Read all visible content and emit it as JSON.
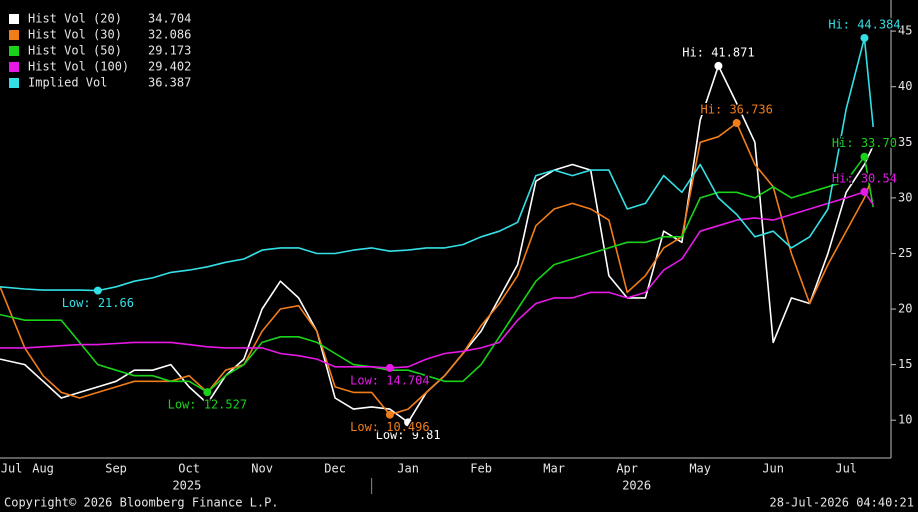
{
  "chart_data": {
    "type": "line",
    "x": [
      0.91,
      1.25,
      1.5,
      1.75,
      2.0,
      2.25,
      2.5,
      2.75,
      3.0,
      3.25,
      3.5,
      3.75,
      4.0,
      4.25,
      4.5,
      4.75,
      5.0,
      5.25,
      5.5,
      5.75,
      6.0,
      6.25,
      6.5,
      6.75,
      7.0,
      7.25,
      7.5,
      7.75,
      8.0,
      8.25,
      8.5,
      8.75,
      9.0,
      9.25,
      9.5,
      9.75,
      10.0,
      10.25,
      10.5,
      10.75,
      11.0,
      11.25,
      11.5,
      11.75,
      12.0,
      12.25,
      12.5,
      12.75,
      12.87
    ],
    "series": [
      {
        "name": "Hist Vol (20)",
        "color": "#ffffff",
        "values": [
          15.5,
          15.0,
          13.5,
          12.0,
          12.5,
          13.0,
          13.5,
          14.5,
          14.5,
          15.0,
          13.0,
          11.5,
          14.0,
          15.5,
          20.0,
          22.5,
          21.0,
          18.0,
          12.0,
          11.0,
          11.2,
          11.0,
          9.81,
          12.5,
          14.0,
          16.0,
          18.0,
          21.0,
          24.0,
          31.5,
          32.5,
          33.0,
          32.5,
          23.0,
          21.0,
          21.0,
          27.0,
          26.0,
          37.0,
          41.871,
          38.5,
          35.0,
          17.0,
          21.0,
          20.5,
          25.0,
          30.5,
          33.0,
          34.704
        ],
        "annotations": [
          {
            "x": 6.5,
            "y": 9.81,
            "label": "Low: 9.81"
          },
          {
            "x": 10.75,
            "y": 41.871,
            "label": "Hi: 41.871"
          }
        ]
      },
      {
        "name": "Hist Vol (30)",
        "color": "#f07d1a",
        "values": [
          22.0,
          16.5,
          14.0,
          12.5,
          12.0,
          12.5,
          13.0,
          13.5,
          13.5,
          13.5,
          14.0,
          12.5,
          14.5,
          15.0,
          18.0,
          20.0,
          20.3,
          18.0,
          13.0,
          12.5,
          12.5,
          10.496,
          11.0,
          12.5,
          14.0,
          16.0,
          18.5,
          20.5,
          23.0,
          27.5,
          29.0,
          29.5,
          29.0,
          28.0,
          21.5,
          23.0,
          25.5,
          26.5,
          35.0,
          35.5,
          36.736,
          33.0,
          31.0,
          25.0,
          20.5,
          24.0,
          27.0,
          30.0,
          32.086
        ],
        "annotations": [
          {
            "x": 6.25,
            "y": 10.496,
            "label": "Low: 10.496"
          },
          {
            "x": 11.0,
            "y": 36.736,
            "label": "Hi: 36.736"
          }
        ]
      },
      {
        "name": "Hist Vol (50)",
        "color": "#19d219",
        "values": [
          19.5,
          19.0,
          19.0,
          19.0,
          17.0,
          15.0,
          14.5,
          14.0,
          14.0,
          13.5,
          13.5,
          12.527,
          14.0,
          15.0,
          17.0,
          17.5,
          17.5,
          17.0,
          16.0,
          15.0,
          14.8,
          14.5,
          14.5,
          14.0,
          13.5,
          13.5,
          15.0,
          17.5,
          20.0,
          22.5,
          24.0,
          24.5,
          25.0,
          25.5,
          26.0,
          26.0,
          26.5,
          26.5,
          30.0,
          30.5,
          30.5,
          30.0,
          31.0,
          30.0,
          30.5,
          31.0,
          31.5,
          33.7,
          29.173
        ],
        "annotations": [
          {
            "x": 3.75,
            "y": 12.527,
            "label": "Low: 12.527"
          },
          {
            "x": 12.75,
            "y": 33.7,
            "label": "Hi: 33.70"
          }
        ]
      },
      {
        "name": "Hist Vol (100)",
        "color": "#e619e6",
        "values": [
          16.5,
          16.5,
          16.6,
          16.7,
          16.8,
          16.8,
          16.9,
          17.0,
          17.0,
          17.0,
          16.8,
          16.6,
          16.5,
          16.5,
          16.5,
          16.0,
          15.8,
          15.5,
          14.8,
          14.8,
          14.8,
          14.704,
          14.8,
          15.5,
          16.0,
          16.2,
          16.5,
          17.0,
          19.0,
          20.5,
          21.0,
          21.0,
          21.5,
          21.5,
          21.0,
          21.5,
          23.5,
          24.5,
          27.0,
          27.5,
          28.0,
          28.2,
          28.0,
          28.5,
          29.0,
          29.5,
          30.0,
          30.54,
          29.402
        ],
        "annotations": [
          {
            "x": 6.25,
            "y": 14.704,
            "label": "Low: 14.704"
          },
          {
            "x": 12.75,
            "y": 30.54,
            "label": "Hi: 30.54"
          }
        ]
      },
      {
        "name": "Implied Vol",
        "color": "#33e0e6",
        "values": [
          22.0,
          21.8,
          21.7,
          21.7,
          21.7,
          21.66,
          22.0,
          22.5,
          22.8,
          23.3,
          23.5,
          23.8,
          24.2,
          24.5,
          25.3,
          25.5,
          25.5,
          25.0,
          25.0,
          25.3,
          25.5,
          25.2,
          25.3,
          25.5,
          25.5,
          25.8,
          26.5,
          27.0,
          27.8,
          32.0,
          32.5,
          32.0,
          32.5,
          32.5,
          29.0,
          29.5,
          32.0,
          30.5,
          33.0,
          30.0,
          28.5,
          26.5,
          27.0,
          25.5,
          26.5,
          29.0,
          38.0,
          44.384,
          36.387
        ],
        "annotations": [
          {
            "x": 2.25,
            "y": 21.66,
            "label": "Low: 21.66"
          },
          {
            "x": 12.75,
            "y": 44.384,
            "label": "Hi: 44.384"
          }
        ]
      }
    ],
    "xlim": [
      0.91,
      13.1
    ],
    "ylim": [
      6.6,
      47.8
    ],
    "yticks": [
      10,
      15,
      20,
      25,
      30,
      35,
      40,
      45
    ],
    "xticks": [
      {
        "value": 1.07,
        "label": "Jul"
      },
      {
        "value": 1.5,
        "label": "Aug"
      },
      {
        "value": 2.5,
        "label": "Sep"
      },
      {
        "value": 3.5,
        "label": "Oct"
      },
      {
        "value": 4.5,
        "label": "Nov"
      },
      {
        "value": 5.5,
        "label": "Dec"
      },
      {
        "value": 6.5,
        "label": "Jan"
      },
      {
        "value": 7.5,
        "label": "Feb"
      },
      {
        "value": 8.5,
        "label": "Mar"
      },
      {
        "value": 9.5,
        "label": "Apr"
      },
      {
        "value": 10.5,
        "label": "May"
      },
      {
        "value": 11.5,
        "label": "Jun"
      },
      {
        "value": 12.5,
        "label": "Jul"
      }
    ],
    "year_labels": [
      {
        "value": 3.47,
        "label": "2025"
      },
      {
        "value": 9.63,
        "label": "2026"
      }
    ],
    "year_separators": [
      6.0
    ],
    "footer_left": "Copyright© 2026 Bloomberg Finance L.P.",
    "footer_right": "28-Jul-2026 04:40:21"
  }
}
